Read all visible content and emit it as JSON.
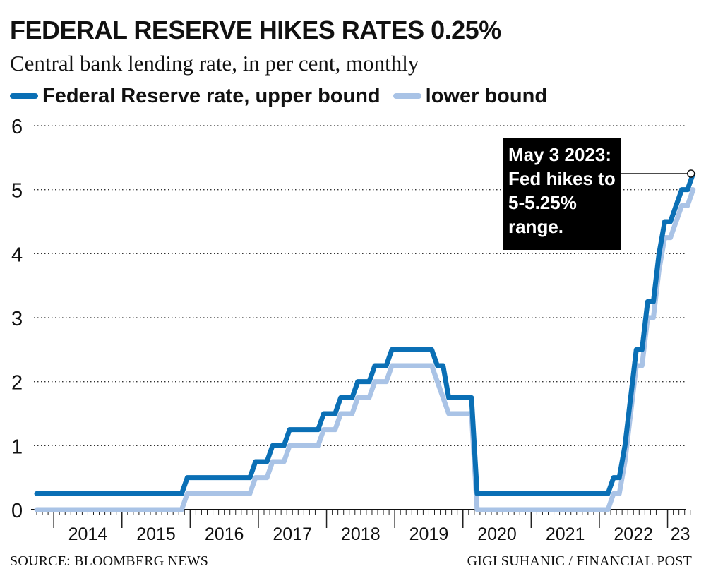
{
  "title": "FEDERAL RESERVE HIKES RATES 0.25%",
  "subtitle": "Central bank lending rate, in per cent, monthly",
  "legend": [
    {
      "label": "Federal Reserve rate, upper bound",
      "color": "#0a6fb5"
    },
    {
      "label": "lower bound",
      "color": "#a9c3e6"
    }
  ],
  "source": "SOURCE: BLOOMBERG NEWS",
  "credit": "GIGI SUHANIC / FINANCIAL POST",
  "colors": {
    "upper": "#0a6fb5",
    "lower": "#a9c3e6",
    "annotation_bg": "#000000",
    "annotation_text": "#ffffff"
  },
  "chart_data": {
    "type": "line",
    "step": true,
    "x_range": [
      "2013-10",
      "2023-05"
    ],
    "ylim": [
      0,
      6
    ],
    "y_ticks": [
      "0",
      "1",
      "2",
      "3",
      "4",
      "5",
      "6"
    ],
    "x_ticks": [
      "2014",
      "2015",
      "2016",
      "2017",
      "2018",
      "2019",
      "2020",
      "2021",
      "2022",
      "23"
    ],
    "grid": "horizontal-dotted",
    "legend_position": "top-left",
    "series": [
      {
        "name": "Federal Reserve rate, upper bound",
        "points": [
          [
            "2013-10",
            0.25
          ],
          [
            "2015-12",
            0.5
          ],
          [
            "2016-12",
            0.75
          ],
          [
            "2017-03",
            1.0
          ],
          [
            "2017-06",
            1.25
          ],
          [
            "2017-12",
            1.5
          ],
          [
            "2018-03",
            1.75
          ],
          [
            "2018-06",
            2.0
          ],
          [
            "2018-09",
            2.25
          ],
          [
            "2018-12",
            2.5
          ],
          [
            "2019-08",
            2.25
          ],
          [
            "2019-10",
            1.75
          ],
          [
            "2020-03",
            0.25
          ],
          [
            "2022-03",
            0.5
          ],
          [
            "2022-05",
            1.0
          ],
          [
            "2022-06",
            1.75
          ],
          [
            "2022-07",
            2.5
          ],
          [
            "2022-09",
            3.25
          ],
          [
            "2022-11",
            4.0
          ],
          [
            "2022-12",
            4.5
          ],
          [
            "2023-02",
            4.75
          ],
          [
            "2023-03",
            5.0
          ],
          [
            "2023-05",
            5.25
          ]
        ]
      },
      {
        "name": "lower bound",
        "points": [
          [
            "2013-10",
            0.0
          ],
          [
            "2015-12",
            0.25
          ],
          [
            "2016-12",
            0.5
          ],
          [
            "2017-03",
            0.75
          ],
          [
            "2017-06",
            1.0
          ],
          [
            "2017-12",
            1.25
          ],
          [
            "2018-03",
            1.5
          ],
          [
            "2018-06",
            1.75
          ],
          [
            "2018-09",
            2.0
          ],
          [
            "2018-12",
            2.25
          ],
          [
            "2019-08",
            2.0
          ],
          [
            "2019-09",
            1.75
          ],
          [
            "2019-10",
            1.5
          ],
          [
            "2020-03",
            0.0
          ],
          [
            "2022-03",
            0.25
          ],
          [
            "2022-05",
            0.75
          ],
          [
            "2022-06",
            1.5
          ],
          [
            "2022-07",
            2.25
          ],
          [
            "2022-09",
            3.0
          ],
          [
            "2022-11",
            3.75
          ],
          [
            "2022-12",
            4.25
          ],
          [
            "2023-02",
            4.5
          ],
          [
            "2023-03",
            4.75
          ],
          [
            "2023-05",
            5.0
          ]
        ]
      }
    ],
    "annotation": {
      "lines": [
        "May 3 2023:",
        "Fed hikes to",
        "5-5.25%",
        "range."
      ],
      "x": "2023-05",
      "y": 5.25
    }
  }
}
